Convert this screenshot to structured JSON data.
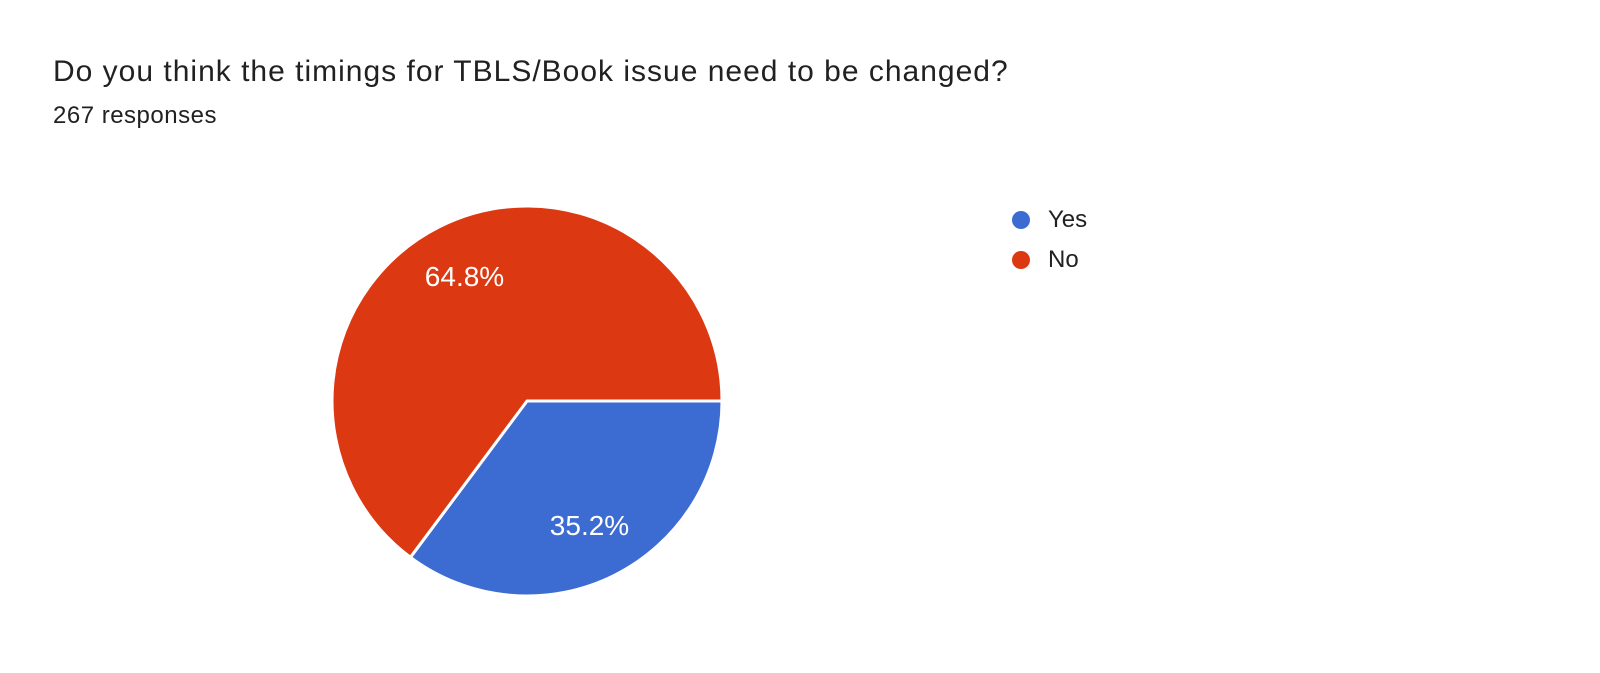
{
  "window": {
    "background_color": "#ffffff"
  },
  "header": {
    "title": "Do you think the timings for TBLS/Book issue need to be changed?",
    "subtitle": "267 responses"
  },
  "chart_data": {
    "type": "pie",
    "title": "Do you think the timings for TBLS/Book issue need to be changed?",
    "subtitle": "267 responses",
    "total_responses": 267,
    "start_angle_deg": 0,
    "direction": "clockwise",
    "slice_label_color": "#ffffff",
    "slice_separator_color": "#ffffff",
    "legend_position": "right",
    "slices": [
      {
        "label": "Yes",
        "percent": 35.2,
        "percent_label": "35.2%",
        "color": "#3c6bd2"
      },
      {
        "label": "No",
        "percent": 64.8,
        "percent_label": "64.8%",
        "color": "#dc3912"
      }
    ]
  }
}
